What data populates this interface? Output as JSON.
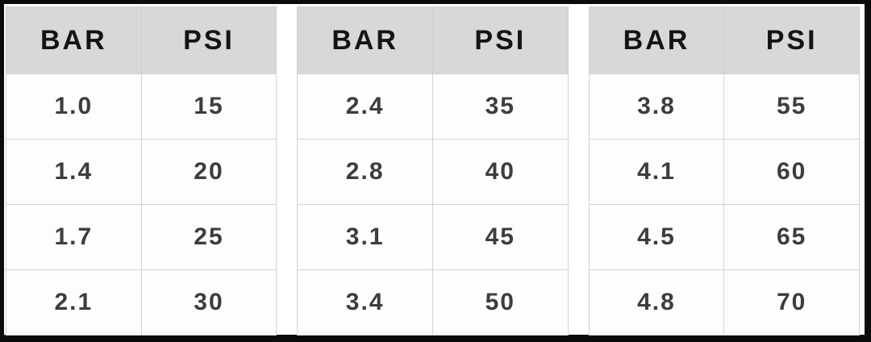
{
  "colors": {
    "frame": "#0b0b0b",
    "background": "#ffffff",
    "header_bg": "#d8d8d8",
    "header_text": "#141414",
    "cell_text": "#3d3d3d",
    "grid_border": "#cfcfcf"
  },
  "tables": [
    {
      "headers": [
        "BAR",
        "PSI"
      ],
      "rows": [
        [
          "1.0",
          "15"
        ],
        [
          "1.4",
          "20"
        ],
        [
          "1.7",
          "25"
        ],
        [
          "2.1",
          "30"
        ]
      ]
    },
    {
      "headers": [
        "BAR",
        "PSI"
      ],
      "rows": [
        [
          "2.4",
          "35"
        ],
        [
          "2.8",
          "40"
        ],
        [
          "3.1",
          "45"
        ],
        [
          "3.4",
          "50"
        ]
      ]
    },
    {
      "headers": [
        "BAR",
        "PSI"
      ],
      "rows": [
        [
          "3.8",
          "55"
        ],
        [
          "4.1",
          "60"
        ],
        [
          "4.5",
          "65"
        ],
        [
          "4.8",
          "70"
        ]
      ]
    }
  ],
  "chart_data": [
    {
      "type": "table",
      "title": "",
      "columns": [
        "BAR",
        "PSI"
      ],
      "rows": [
        [
          1.0,
          15
        ],
        [
          1.4,
          20
        ],
        [
          1.7,
          25
        ],
        [
          2.1,
          30
        ]
      ]
    },
    {
      "type": "table",
      "title": "",
      "columns": [
        "BAR",
        "PSI"
      ],
      "rows": [
        [
          2.4,
          35
        ],
        [
          2.8,
          40
        ],
        [
          3.1,
          45
        ],
        [
          3.4,
          50
        ]
      ]
    },
    {
      "type": "table",
      "title": "",
      "columns": [
        "BAR",
        "PSI"
      ],
      "rows": [
        [
          3.8,
          55
        ],
        [
          4.1,
          60
        ],
        [
          4.5,
          65
        ],
        [
          4.8,
          70
        ]
      ]
    }
  ]
}
